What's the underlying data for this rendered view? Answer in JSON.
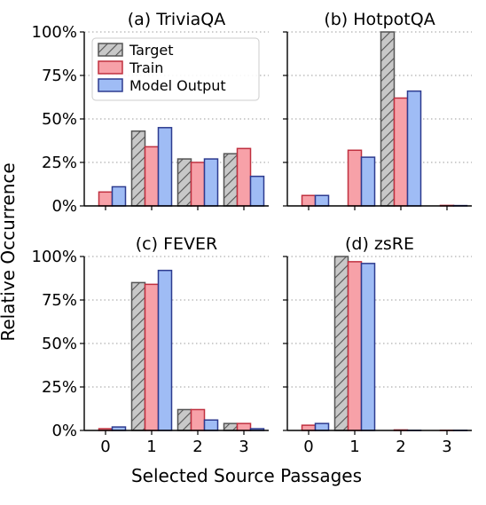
{
  "figure": {
    "ylabel": "Relative Occurrence",
    "xlabel": "Selected Source Passages"
  },
  "legend": {
    "entries": [
      {
        "name": "Target",
        "color": "#c8c8c8",
        "edge": "#555555",
        "hatch": true
      },
      {
        "name": "Train",
        "color": "#f7a1a8",
        "edge": "#c0303f",
        "hatch": false
      },
      {
        "name": "Model Output",
        "color": "#9fbcf5",
        "edge": "#2d3b8f",
        "hatch": false
      }
    ]
  },
  "chart_data": [
    {
      "type": "bar",
      "title": "(a) TriviaQA",
      "categories": [
        "0",
        "1",
        "2",
        "3"
      ],
      "ylim": [
        0,
        100
      ],
      "yticks": [
        "0%",
        "25%",
        "50%",
        "75%",
        "100%"
      ],
      "grid": "horizontal dotted",
      "legend": "top-left",
      "series": [
        {
          "name": "Target",
          "values": [
            0,
            43,
            27,
            30
          ]
        },
        {
          "name": "Train",
          "values": [
            8,
            34,
            25,
            33
          ]
        },
        {
          "name": "Model Output",
          "values": [
            11,
            45,
            27,
            17
          ]
        }
      ]
    },
    {
      "type": "bar",
      "title": "(b) HotpotQA",
      "categories": [
        "0",
        "1",
        "2",
        "3"
      ],
      "ylim": [
        0,
        100
      ],
      "yticks": [
        "0%",
        "25%",
        "50%",
        "75%",
        "100%"
      ],
      "grid": "horizontal dotted",
      "series": [
        {
          "name": "Target",
          "values": [
            0,
            0,
            100,
            0
          ]
        },
        {
          "name": "Train",
          "values": [
            6,
            32,
            62,
            0.3
          ]
        },
        {
          "name": "Model Output",
          "values": [
            6,
            28,
            66,
            0.2
          ]
        }
      ]
    },
    {
      "type": "bar",
      "title": "(c) FEVER",
      "categories": [
        "0",
        "1",
        "2",
        "3"
      ],
      "ylim": [
        0,
        100
      ],
      "yticks": [
        "0%",
        "25%",
        "50%",
        "75%",
        "100%"
      ],
      "grid": "horizontal dotted",
      "series": [
        {
          "name": "Target",
          "values": [
            0,
            85,
            12,
            4
          ]
        },
        {
          "name": "Train",
          "values": [
            1,
            84,
            12,
            4
          ]
        },
        {
          "name": "Model Output",
          "values": [
            2,
            92,
            6,
            1
          ]
        }
      ]
    },
    {
      "type": "bar",
      "title": "(d) zsRE",
      "categories": [
        "0",
        "1",
        "2",
        "3"
      ],
      "ylim": [
        0,
        100
      ],
      "yticks": [
        "0%",
        "25%",
        "50%",
        "75%",
        "100%"
      ],
      "grid": "horizontal dotted",
      "series": [
        {
          "name": "Target",
          "values": [
            0,
            100,
            0,
            0
          ]
        },
        {
          "name": "Train",
          "values": [
            3,
            97,
            0.3,
            0.1
          ]
        },
        {
          "name": "Model Output",
          "values": [
            4,
            96,
            0.1,
            0.1
          ]
        }
      ]
    }
  ]
}
